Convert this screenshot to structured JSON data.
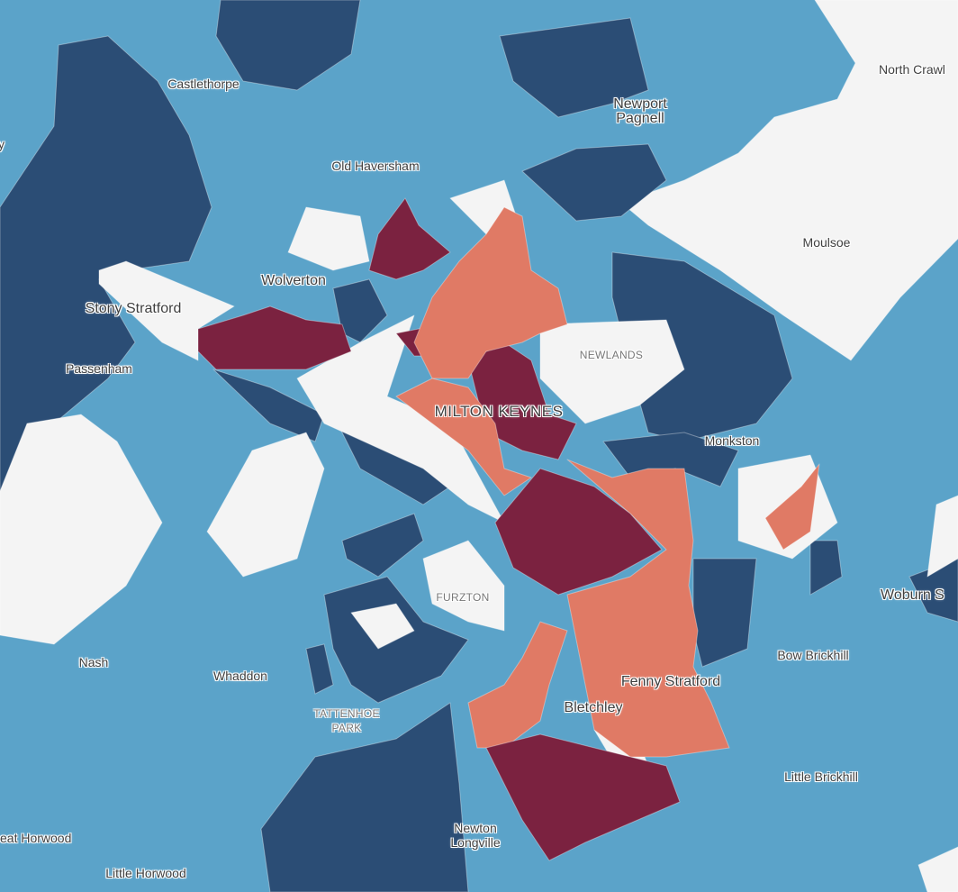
{
  "colors": {
    "background": "#5ba3c9",
    "navy": "#2b4d75",
    "white": "#f4f4f4",
    "maroon": "#7b2240",
    "salmon": "#e07a65"
  },
  "labels": {
    "castlethorpe": "Castlethorpe",
    "newport_pagnell_1": "Newport",
    "newport_pagnell_2": "Pagnell",
    "north_crawley": "North Crawl",
    "old_haversham": "Old Haversham",
    "moulsoe": "Moulsoe",
    "wolverton": "Wolverton",
    "stony_stratford": "Stony Stratford",
    "passenham": "Passenham",
    "left_edge": "y",
    "newlands": "NEWLANDS",
    "milton_keynes": "MILTON KEYNES",
    "monkston": "Monkston",
    "woburn_sands": "Woburn S",
    "furzton": "FURZTON",
    "bow_brickhill": "Bow Brickhill",
    "nash": "Nash",
    "whaddon": "Whaddon",
    "tattenhoe_park_1": "TATTENHOE",
    "tattenhoe_park_2": "PARK",
    "fenny_stratford": "Fenny Stratford",
    "bletchley": "Bletchley",
    "little_brickhill": "Little Brickhill",
    "newton_longville_1": "Newton",
    "newton_longville_2": "Longville",
    "great_horwood": "eat Horwood",
    "little_horwood": "Little Horwood"
  }
}
